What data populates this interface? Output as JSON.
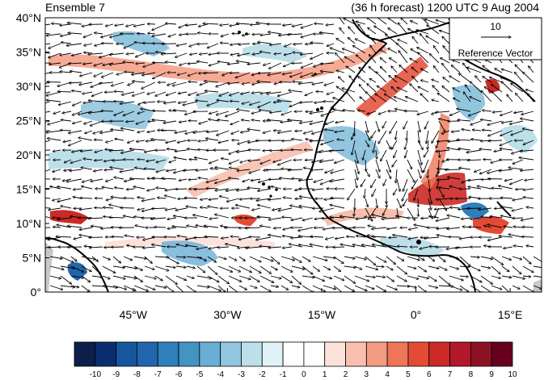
{
  "header": {
    "left_title": "Ensemble 7",
    "right_title": "(36 h forecast) 1200 UTC 9 Aug 2004"
  },
  "reference_vector": {
    "magnitude_label": "10",
    "caption": "Reference Vector"
  },
  "axes": {
    "lat_labels": [
      "40°N",
      "35°N",
      "30°N",
      "25°N",
      "20°N",
      "15°N",
      "10°N",
      "5°N",
      "0°"
    ],
    "lon_labels": [
      "45°W",
      "30°W",
      "15°W",
      "0°",
      "15°E"
    ],
    "lon_range": [
      -59,
      20
    ],
    "lat_range": [
      0,
      40
    ]
  },
  "colorbar": {
    "labels": [
      "-10",
      "-9",
      "-8",
      "-7",
      "-6",
      "-5",
      "-4",
      "-3",
      "-2",
      "-1",
      "0",
      "1",
      "2",
      "3",
      "4",
      "5",
      "6",
      "7",
      "8",
      "9",
      "10"
    ],
    "colors": [
      "#0a1f49",
      "#0b2f6e",
      "#16569c",
      "#2166ac",
      "#2f7fbb",
      "#4393c3",
      "#6aaed6",
      "#92c5de",
      "#bcdfe9",
      "#e0f1f7",
      "#ffffff",
      "#ffffff",
      "#fde2dc",
      "#f8bfae",
      "#f49b83",
      "#ee7557",
      "#e34b35",
      "#cb2a26",
      "#b2182b",
      "#8d1225",
      "#67001f"
    ]
  },
  "colors": {
    "land_gray": "#c8c8c8",
    "coastline": "#000000"
  }
}
